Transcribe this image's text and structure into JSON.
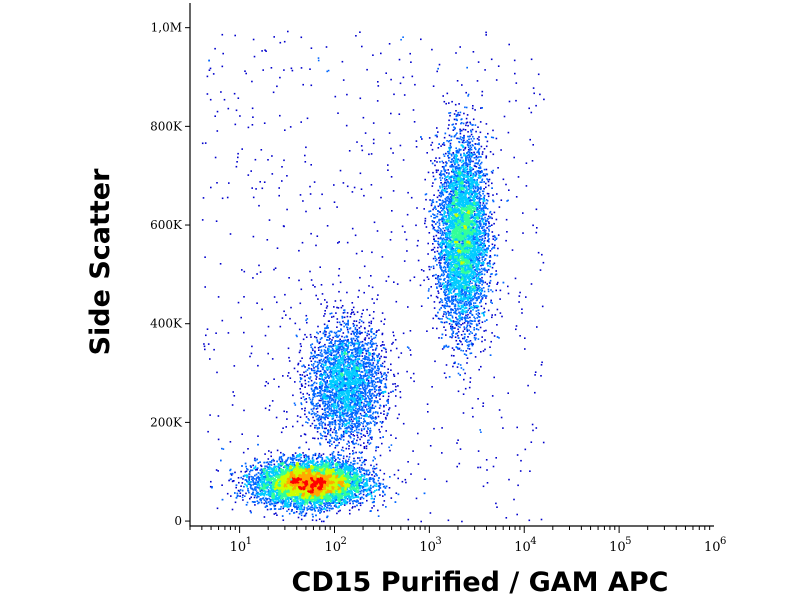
{
  "chart_data": {
    "type": "scatter",
    "title": "",
    "xlabel": "CD15 Purified / GAM APC",
    "ylabel": "Side Scatter",
    "x_scale": "log",
    "xlim": [
      3,
      1000000
    ],
    "ylim": [
      -10000,
      1050000
    ],
    "x_ticks": [
      {
        "base": "10",
        "exp": "1",
        "value": 10
      },
      {
        "base": "10",
        "exp": "2",
        "value": 100
      },
      {
        "base": "10",
        "exp": "3",
        "value": 1000
      },
      {
        "base": "10",
        "exp": "4",
        "value": 10000
      },
      {
        "base": "10",
        "exp": "5",
        "value": 100000
      },
      {
        "base": "10",
        "exp": "6",
        "value": 1000000
      }
    ],
    "y_ticks": [
      {
        "label": "0",
        "value": 0
      },
      {
        "label": "200K",
        "value": 200000
      },
      {
        "label": "400K",
        "value": 400000
      },
      {
        "label": "600K",
        "value": 600000
      },
      {
        "label": "800K",
        "value": 800000
      },
      {
        "label": "1,0M",
        "value": 1000000
      }
    ],
    "grid": false,
    "legend": "none",
    "colormap": [
      "#0000cc",
      "#0066ff",
      "#00ccff",
      "#33ff99",
      "#ccff00",
      "#ffaa00",
      "#ff0000"
    ],
    "populations": [
      {
        "x_center": 55,
        "x_log_sd": 0.28,
        "y_center": 78000,
        "y_sd": 22000,
        "relative_density": 1.0
      },
      {
        "x_center": 130,
        "x_log_sd": 0.2,
        "y_center": 280000,
        "y_sd": 60000,
        "relative_density": 0.35
      },
      {
        "x_center": 2200,
        "x_log_sd": 0.13,
        "y_center": 580000,
        "y_sd": 95000,
        "relative_density": 0.65
      }
    ]
  }
}
